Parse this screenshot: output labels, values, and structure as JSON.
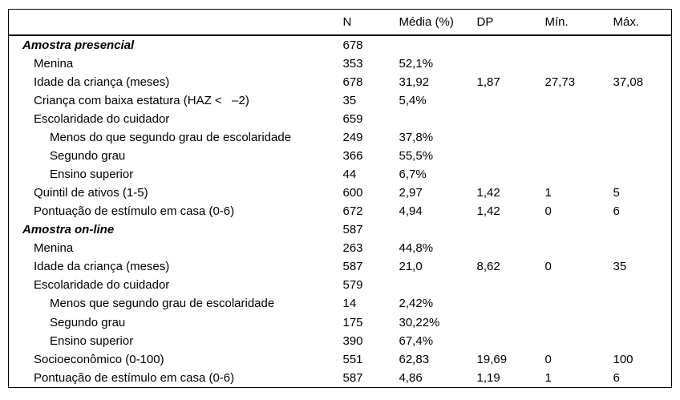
{
  "colors": {
    "background": "#ffffff",
    "text": "#000000",
    "rule": "#000000"
  },
  "table": {
    "columns": [
      "",
      "N",
      "Média (%)",
      "DP",
      "Mín.",
      "Máx."
    ],
    "rows": [
      {
        "level": "section",
        "label": "Amostra presencial",
        "n": "678",
        "media": "",
        "dp": "",
        "min": "",
        "max": ""
      },
      {
        "level": "l1",
        "label": "Menina",
        "n": "353",
        "media": "52,1%",
        "dp": "",
        "min": "",
        "max": ""
      },
      {
        "level": "l1",
        "label": "Idade da criança (meses)",
        "n": "678",
        "media": "31,92",
        "dp": "1,87",
        "min": "27,73",
        "max": "37,08"
      },
      {
        "level": "l1",
        "label": "Criança com baixa estatura (HAZ <   –2)",
        "n": "35",
        "media": "5,4%",
        "dp": "",
        "min": "",
        "max": ""
      },
      {
        "level": "l1",
        "label": "Escolaridade do cuidador",
        "n": "659",
        "media": "",
        "dp": "",
        "min": "",
        "max": ""
      },
      {
        "level": "l2",
        "label": "Menos do que segundo grau de escolaridade",
        "n": "249",
        "media": "37,8%",
        "dp": "",
        "min": "",
        "max": ""
      },
      {
        "level": "l2",
        "label": "Segundo grau",
        "n": "366",
        "media": "55,5%",
        "dp": "",
        "min": "",
        "max": ""
      },
      {
        "level": "l2",
        "label": "Ensino superior",
        "n": "44",
        "media": "6,7%",
        "dp": "",
        "min": "",
        "max": ""
      },
      {
        "level": "l1",
        "label": "Quintil de ativos (1-5)",
        "n": "600",
        "media": "2,97",
        "dp": "1,42",
        "min": "1",
        "max": "5"
      },
      {
        "level": "l1",
        "label": "Pontuação de estímulo em casa (0-6)",
        "n": "672",
        "media": "4,94",
        "dp": "1,42",
        "min": "0",
        "max": "6"
      },
      {
        "level": "section",
        "label": "Amostra on-line",
        "n": "587",
        "media": "",
        "dp": "",
        "min": "",
        "max": ""
      },
      {
        "level": "l1",
        "label": "Menina",
        "n": "263",
        "media": "44,8%",
        "dp": "",
        "min": "",
        "max": ""
      },
      {
        "level": "l1",
        "label": "Idade da criança (meses)",
        "n": "587",
        "media": "21,0",
        "dp": "8,62",
        "min": "0",
        "max": "35"
      },
      {
        "level": "l1",
        "label": "Escolaridade do cuidador",
        "n": "579",
        "media": "",
        "dp": "",
        "min": "",
        "max": ""
      },
      {
        "level": "l2",
        "label": "Menos que segundo grau de escolaridade",
        "n": "14",
        "media": "2,42%",
        "dp": "",
        "min": "",
        "max": ""
      },
      {
        "level": "l2",
        "label": "Segundo grau",
        "n": "175",
        "media": "30,22%",
        "dp": "",
        "min": "",
        "max": ""
      },
      {
        "level": "l2",
        "label": "Ensino superior",
        "n": "390",
        "media": "67,4%",
        "dp": "",
        "min": "",
        "max": ""
      },
      {
        "level": "l1",
        "label": "Socioeconômico (0-100)",
        "n": "551",
        "media": "62,83",
        "dp": "19,69",
        "min": "0",
        "max": "100"
      },
      {
        "level": "l1",
        "label": "Pontuação de estímulo em casa (0-6)",
        "n": "587",
        "media": "4,86",
        "dp": "1,19",
        "min": "1",
        "max": "6"
      }
    ]
  }
}
